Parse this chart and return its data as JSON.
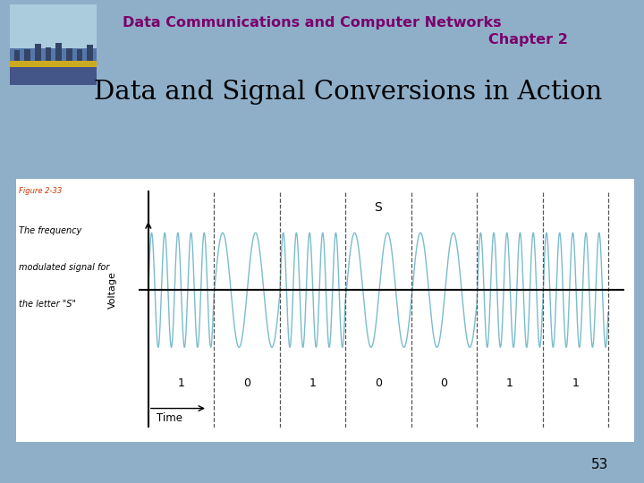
{
  "bg_color": "#8fafc9",
  "slide_title_line1": "Data Communications and Computer Networks",
  "slide_title_line2": "Chapter 2",
  "slide_subtitle": "Data and Signal Conversions in Action",
  "title_color": "#7B006B",
  "subtitle_color": "#000000",
  "page_number": "53",
  "figure_label": "Figure 2-33",
  "figure_caption_line1": "The frequency",
  "figure_caption_line2": "modulated signal for",
  "figure_caption_line3": "the letter \"S\"",
  "bits": [
    1,
    0,
    1,
    0,
    0,
    1,
    1
  ],
  "bit_labels": [
    "1",
    "0",
    "1",
    "0",
    "0",
    "1",
    "1"
  ],
  "high_freq": 5,
  "low_freq": 2,
  "signal_color": "#7bbccc",
  "axis_label_voltage": "Voltage",
  "axis_label_time": "Time",
  "s_label": "S",
  "chart_bg": "#ffffff",
  "wave_amplitude": 0.75,
  "dashed_line_color": "#555555",
  "solid_line_color": "#000000"
}
